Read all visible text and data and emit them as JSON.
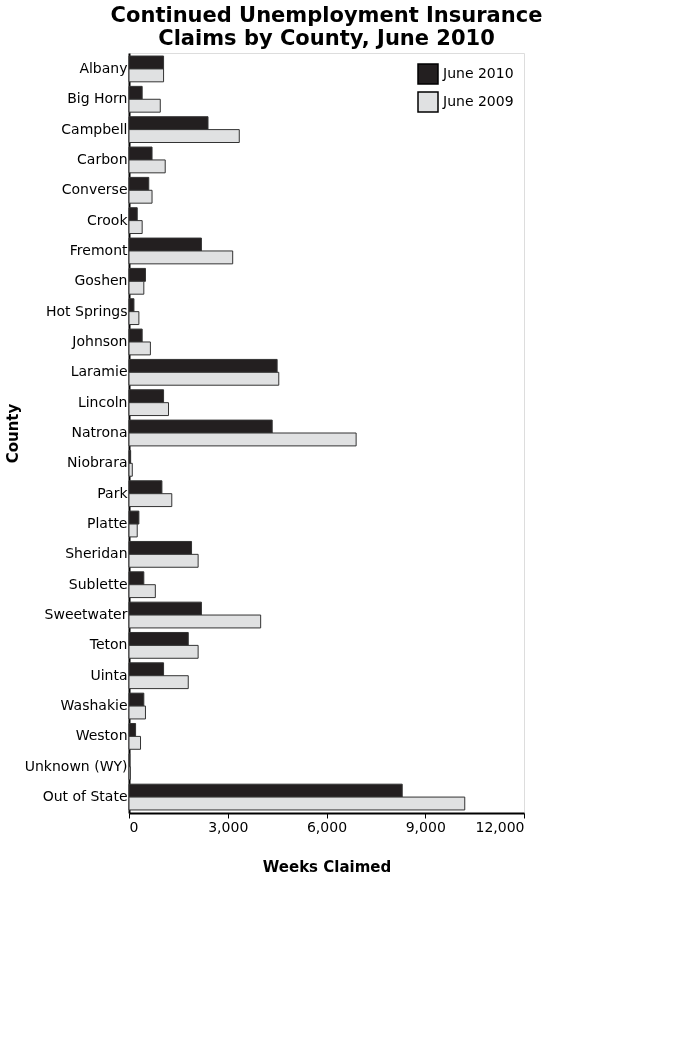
{
  "chart_data": {
    "type": "bar",
    "orientation": "horizontal",
    "title": [
      "Continued Unemployment Insurance",
      "Claims by County, June 2010"
    ],
    "xlabel": "Weeks Claimed",
    "ylabel": "County",
    "categories": [
      "Albany",
      "Big Horn",
      "Campbell",
      "Carbon",
      "Converse",
      "Crook",
      "Fremont",
      "Goshen",
      "Hot Springs",
      "Johnson",
      "Laramie",
      "Lincoln",
      "Natrona",
      "Niobrara",
      "Park",
      "Platte",
      "Sheridan",
      "Sublette",
      "Sweetwater",
      "Teton",
      "Uinta",
      "Washakie",
      "Weston",
      "Unknown (WY)",
      "Out of State"
    ],
    "series": [
      {
        "name": "June 2010",
        "color": "#231f20",
        "values": [
          1050,
          400,
          2400,
          700,
          600,
          250,
          2200,
          500,
          150,
          400,
          4500,
          1050,
          4350,
          50,
          1000,
          300,
          1900,
          450,
          2200,
          1800,
          1050,
          450,
          200,
          20,
          8300
        ]
      },
      {
        "name": "June 2009",
        "color": "#e0e1e2",
        "values": [
          1050,
          950,
          3350,
          1100,
          700,
          400,
          3150,
          450,
          300,
          650,
          4550,
          1200,
          6900,
          100,
          1300,
          250,
          2100,
          800,
          4000,
          2100,
          1800,
          500,
          350,
          40,
          10200
        ]
      }
    ],
    "xlim": [
      0,
      12000
    ],
    "xticks": [
      0,
      {
        "value": 3000,
        "label": "3,000"
      },
      {
        "value": 6000,
        "label": "6,000"
      },
      {
        "value": 9000,
        "label": "9,000"
      },
      {
        "value": 12000,
        "label": "12,000"
      }
    ],
    "grid": false,
    "legend": "top right"
  }
}
